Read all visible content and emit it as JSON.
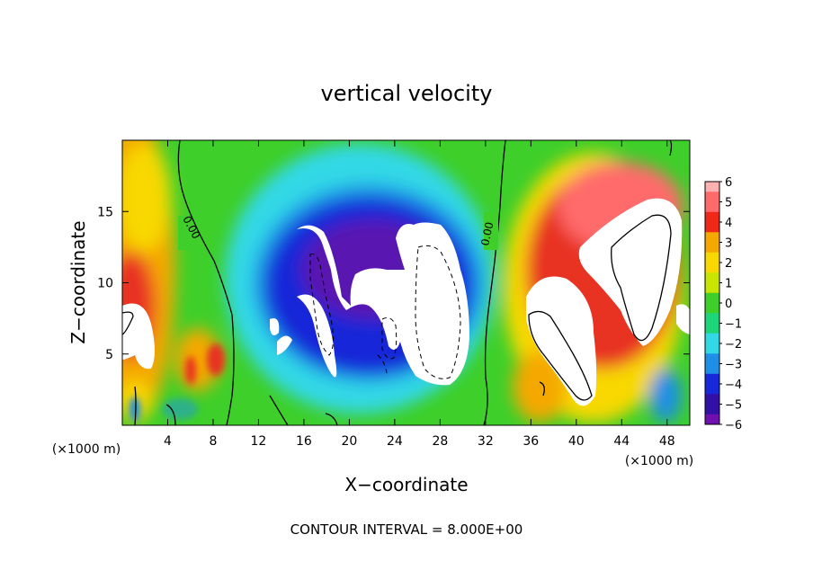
{
  "chart_data": {
    "type": "heatmap",
    "title": "vertical velocity",
    "xlabel": "X−coordinate",
    "ylabel": "Z−coordinate",
    "x_unit_left": "(×1000 m)",
    "x_unit_right": "(×1000 m)",
    "xlim": [
      0,
      50
    ],
    "ylim": [
      0,
      20
    ],
    "x_ticks": [
      "4",
      "8",
      "12",
      "16",
      "20",
      "24",
      "28",
      "32",
      "36",
      "40",
      "44",
      "48"
    ],
    "y_ticks": [
      "5",
      "10",
      "15"
    ],
    "colorbar": {
      "min": -6,
      "max": 6,
      "labels": [
        "6",
        "5",
        "4",
        "3",
        "2",
        "1",
        "0",
        "−1",
        "−2",
        "−3",
        "−4",
        "−5",
        "−6"
      ]
    },
    "contour_labels": [
      "0.00",
      "0.00"
    ],
    "footer": "CONTOUR INTERVAL = 8.000E+00",
    "features": [
      {
        "name": "downdraft core",
        "x": 22,
        "z": 10,
        "w": -6
      },
      {
        "name": "updraft core",
        "x": 45,
        "z": 10,
        "w": 6
      },
      {
        "name": "left updraft",
        "x": 2,
        "z": 6,
        "w": 6
      }
    ]
  }
}
